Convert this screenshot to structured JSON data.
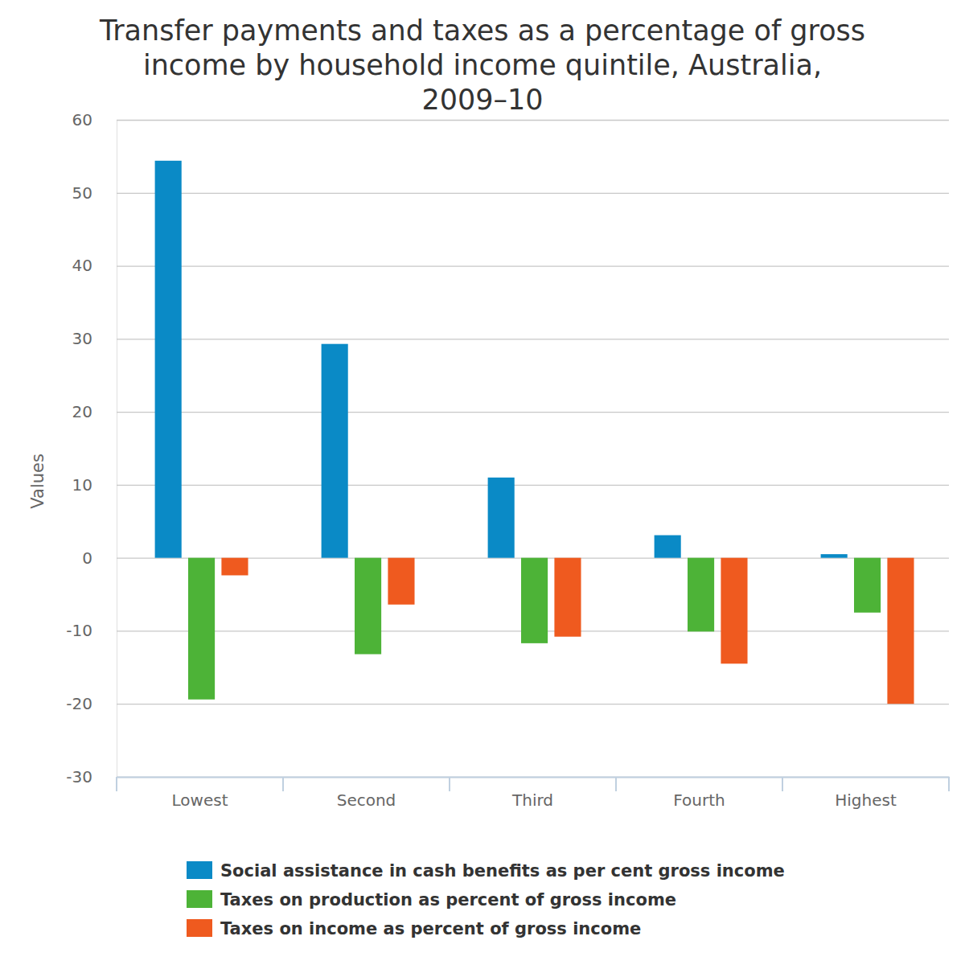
{
  "chart_data": {
    "type": "bar",
    "title": "Transfer payments and taxes as a percentage of gross income by household income quintile, Australia, 2009–10",
    "y_label": "Values",
    "categories": [
      "Lowest",
      "Second",
      "Third",
      "Fourth",
      "Highest"
    ],
    "series": [
      {
        "name": "Social assistance in cash benefits as per cent gross income",
        "color": "#0a8ac6",
        "values": [
          54.4,
          29.3,
          11.0,
          3.1,
          0.5
        ]
      },
      {
        "name": "Taxes on production as percent of gross income",
        "color": "#4db337",
        "values": [
          -19.4,
          -13.2,
          -11.7,
          -10.1,
          -7.5
        ]
      },
      {
        "name": "Taxes on income as percent of gross income",
        "color": "#ef5a1f",
        "values": [
          -2.4,
          -6.4,
          -10.8,
          -14.5,
          -20.0
        ]
      }
    ],
    "ylim": [
      -30,
      60
    ],
    "yticks": [
      -30,
      -20,
      -10,
      0,
      10,
      20,
      30,
      40,
      50,
      60
    ],
    "grid": true,
    "legend": "bottom"
  }
}
